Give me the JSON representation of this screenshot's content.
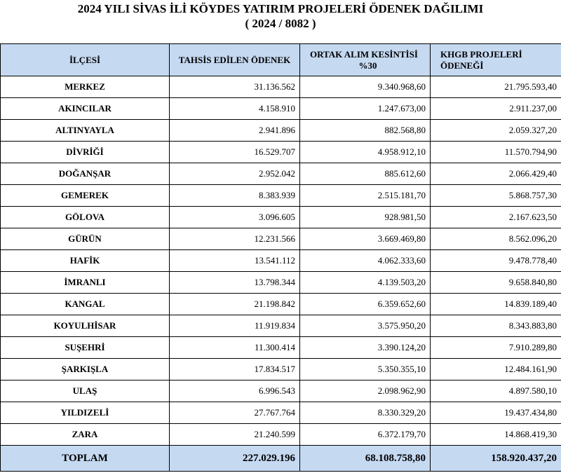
{
  "title": {
    "line1": "2024 YILI SİVAS İLİ KÖYDES YATIRIM PROJELERİ ÖDENEK DAĞILIMI",
    "line2": "( 2024 / 8082 )"
  },
  "headers": {
    "col1": "İLÇESİ",
    "col2": "TAHSİS EDİLEN ÖDENEK",
    "col3_line1": "ORTAK ALIM KESİNTİSİ",
    "col3_line2": "%30",
    "col4_line1": "KHGB PROJELERİ",
    "col4_line2": "ÖDENEĞİ"
  },
  "rows": [
    {
      "ilce": "MERKEZ",
      "tahsis": "31.136.562",
      "kesinti": "9.340.968,60",
      "khgb": "21.795.593,40"
    },
    {
      "ilce": "AKINCILAR",
      "tahsis": "4.158.910",
      "kesinti": "1.247.673,00",
      "khgb": "2.911.237,00"
    },
    {
      "ilce": "ALTINYAYLA",
      "tahsis": "2.941.896",
      "kesinti": "882.568,80",
      "khgb": "2.059.327,20"
    },
    {
      "ilce": "DİVRİĞİ",
      "tahsis": "16.529.707",
      "kesinti": "4.958.912,10",
      "khgb": "11.570.794,90"
    },
    {
      "ilce": "DOĞANŞAR",
      "tahsis": "2.952.042",
      "kesinti": "885.612,60",
      "khgb": "2.066.429,40"
    },
    {
      "ilce": "GEMEREK",
      "tahsis": "8.383.939",
      "kesinti": "2.515.181,70",
      "khgb": "5.868.757,30"
    },
    {
      "ilce": "GÖLOVA",
      "tahsis": "3.096.605",
      "kesinti": "928.981,50",
      "khgb": "2.167.623,50"
    },
    {
      "ilce": "GÜRÜN",
      "tahsis": "12.231.566",
      "kesinti": "3.669.469,80",
      "khgb": "8.562.096,20"
    },
    {
      "ilce": "HAFİK",
      "tahsis": "13.541.112",
      "kesinti": "4.062.333,60",
      "khgb": "9.478.778,40"
    },
    {
      "ilce": "İMRANLI",
      "tahsis": "13.798.344",
      "kesinti": "4.139.503,20",
      "khgb": "9.658.840,80"
    },
    {
      "ilce": "KANGAL",
      "tahsis": "21.198.842",
      "kesinti": "6.359.652,60",
      "khgb": "14.839.189,40"
    },
    {
      "ilce": "KOYULHİSAR",
      "tahsis": "11.919.834",
      "kesinti": "3.575.950,20",
      "khgb": "8.343.883,80"
    },
    {
      "ilce": "SUŞEHRİ",
      "tahsis": "11.300.414",
      "kesinti": "3.390.124,20",
      "khgb": "7.910.289,80"
    },
    {
      "ilce": "ŞARKIŞLA",
      "tahsis": "17.834.517",
      "kesinti": "5.350.355,10",
      "khgb": "12.484.161,90"
    },
    {
      "ilce": "ULAŞ",
      "tahsis": "6.996.543",
      "kesinti": "2.098.962,90",
      "khgb": "4.897.580,10"
    },
    {
      "ilce": "YILDIZELİ",
      "tahsis": "27.767.764",
      "kesinti": "8.330.329,20",
      "khgb": "19.437.434,80"
    },
    {
      "ilce": "ZARA",
      "tahsis": "21.240.599",
      "kesinti": "6.372.179,70",
      "khgb": "14.868.419,30"
    }
  ],
  "total": {
    "label": "TOPLAM",
    "tahsis": "227.029.196",
    "kesinti": "68.108.758,80",
    "khgb": "158.920.437,20"
  }
}
